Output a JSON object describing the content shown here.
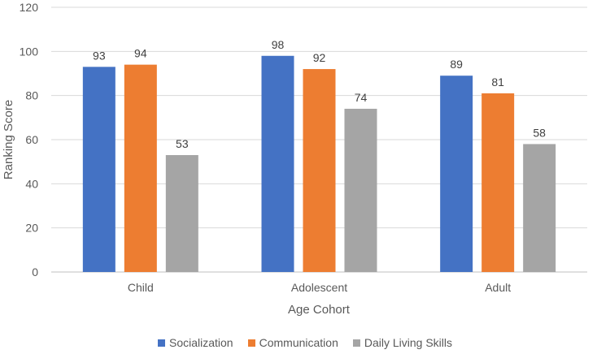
{
  "chart_data": {
    "type": "bar",
    "title": "",
    "xlabel": "Age Cohort",
    "ylabel": "Ranking Score",
    "ylim": [
      0,
      120
    ],
    "yticks": [
      0,
      20,
      40,
      60,
      80,
      100,
      120
    ],
    "grid": true,
    "legend_position": "bottom",
    "categories": [
      "Child",
      "Adolescent",
      "Adult"
    ],
    "series": [
      {
        "name": "Socialization",
        "color": "#4472C4",
        "values": [
          93,
          98,
          89
        ]
      },
      {
        "name": "Communication",
        "color": "#ED7D31",
        "values": [
          94,
          92,
          81
        ]
      },
      {
        "name": "Daily Living Skills",
        "color": "#A5A5A5",
        "values": [
          53,
          74,
          58
        ]
      }
    ]
  }
}
